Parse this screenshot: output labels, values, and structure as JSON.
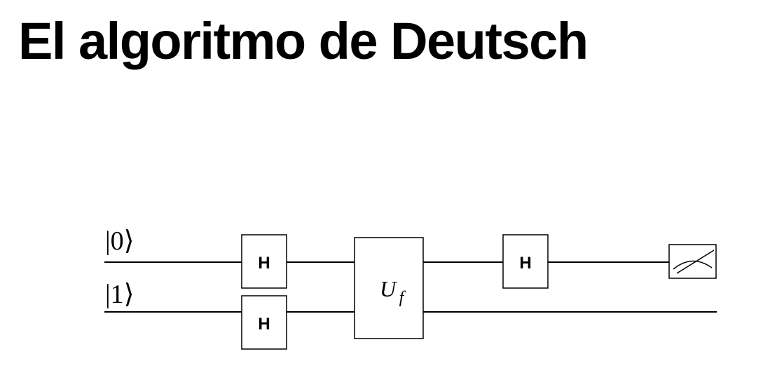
{
  "title": "El algoritmo de Deutsch",
  "circuit": {
    "qubits": [
      {
        "label": "|0⟩"
      },
      {
        "label": "|1⟩"
      }
    ],
    "gates": {
      "h_top_1": "H",
      "h_bottom": "H",
      "oracle": {
        "symbol": "U",
        "subscript": "f"
      },
      "h_top_2": "H"
    },
    "measurement": {
      "icon": "meter-icon",
      "qubit": 0
    }
  }
}
